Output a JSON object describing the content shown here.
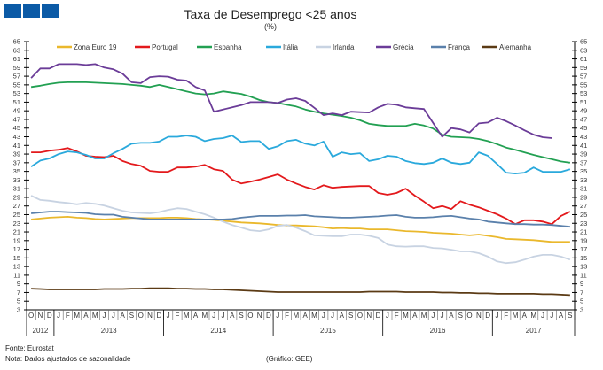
{
  "header": {
    "title": "Taxa de Desemprego <25 anos",
    "unit": "(%)"
  },
  "logo": {
    "color": "#0b5aa6"
  },
  "footer": {
    "source": "Fonte: Eurostat",
    "note": "Nota: Dados ajustados de sazonalidade",
    "credit": "(Gráfico: GEE)"
  },
  "chart_data": {
    "type": "line",
    "title": "Taxa de Desemprego <25 anos",
    "ylabel": "(%)",
    "ylim": [
      3,
      65
    ],
    "yticks": [
      65,
      63,
      61,
      59,
      57,
      55,
      53,
      51,
      49,
      47,
      45,
      43,
      41,
      39,
      37,
      35,
      33,
      31,
      29,
      27,
      25,
      23,
      21,
      19,
      17,
      15,
      13,
      11,
      9,
      7,
      5,
      3
    ],
    "grid": false,
    "legend": "top",
    "x_months": [
      "O",
      "N",
      "D",
      "J",
      "F",
      "M",
      "A",
      "M",
      "J",
      "J",
      "A",
      "S",
      "O",
      "N",
      "D",
      "J",
      "F",
      "M",
      "A",
      "M",
      "J",
      "J",
      "A",
      "S",
      "O",
      "N",
      "D",
      "J",
      "F",
      "M",
      "A",
      "M",
      "J",
      "J",
      "A",
      "S",
      "O",
      "N",
      "D",
      "J",
      "F",
      "M",
      "A",
      "M",
      "J",
      "J",
      "A",
      "S",
      "O",
      "N",
      "D",
      "J",
      "F",
      "M",
      "A",
      "M",
      "J",
      "J",
      "A",
      "S"
    ],
    "x_years": [
      {
        "label": "2012",
        "months": 3
      },
      {
        "label": "2013",
        "months": 12
      },
      {
        "label": "2014",
        "months": 12
      },
      {
        "label": "2015",
        "months": 12
      },
      {
        "label": "2016",
        "months": 12
      },
      {
        "label": "2017",
        "months": 9
      }
    ],
    "series": [
      {
        "name": "Zona Euro 19",
        "color": "#eab82c",
        "values": [
          23.9,
          24.1,
          24.3,
          24.4,
          24.5,
          24.3,
          24.2,
          24,
          23.9,
          24,
          24.1,
          24.2,
          24.2,
          24.2,
          24.2,
          24.3,
          24.3,
          24.2,
          24,
          23.9,
          23.8,
          23.6,
          23.4,
          23.2,
          23.1,
          23,
          22.8,
          22.6,
          22.5,
          22.5,
          22.4,
          22.3,
          22.1,
          21.8,
          21.9,
          21.8,
          21.8,
          21.6,
          21.6,
          21.6,
          21.4,
          21.2,
          21.1,
          21,
          20.8,
          20.7,
          20.6,
          20.4,
          20.2,
          20.4,
          20.1,
          19.8,
          19.4,
          19.3,
          19.2,
          19.1,
          18.9,
          18.7,
          18.7,
          18.7
        ]
      },
      {
        "name": "Portugal",
        "color": "#e3191c",
        "values": [
          39.4,
          39.4,
          39.8,
          40,
          40.4,
          39.6,
          38.6,
          38.4,
          38.3,
          38.6,
          37.4,
          36.7,
          36.3,
          35.1,
          34.9,
          34.9,
          35.9,
          35.9,
          36.1,
          36.5,
          35.5,
          35.1,
          33.1,
          32.2,
          32.6,
          33.1,
          33.7,
          34.3,
          33.1,
          32.2,
          31.4,
          30.8,
          31.8,
          31.2,
          31.4,
          31.5,
          31.6,
          31.6,
          30,
          29.6,
          30,
          31,
          29.4,
          28,
          26.5,
          27,
          26.3,
          28.1,
          27.3,
          26.7,
          25.9,
          25.1,
          24.1,
          22.8,
          23.7,
          23.7,
          23.4,
          22.8,
          24.7,
          25.7
        ]
      },
      {
        "name": "Espanha",
        "color": "#22a052",
        "values": [
          54.5,
          54.8,
          55.2,
          55.5,
          55.6,
          55.6,
          55.6,
          55.5,
          55.4,
          55.3,
          55.2,
          55,
          54.8,
          54.5,
          55,
          54.5,
          54,
          53.5,
          53,
          52.8,
          53,
          53.5,
          53.2,
          52.9,
          52.3,
          51.5,
          51,
          50.8,
          50.4,
          50,
          49.3,
          48.8,
          48.4,
          48.1,
          47.8,
          47.4,
          46.8,
          46,
          45.7,
          45.5,
          45.5,
          45.5,
          46,
          45.6,
          44.9,
          43.5,
          43,
          42.9,
          42.8,
          42.5,
          42,
          41.3,
          40.5,
          40,
          39.4,
          38.8,
          38.3,
          37.8,
          37.3,
          37
        ]
      },
      {
        "name": "Itália",
        "color": "#2aa9dc",
        "values": [
          36.1,
          37.5,
          38,
          39,
          39.6,
          39.4,
          38.8,
          38,
          38,
          39.2,
          40.2,
          41.4,
          41.6,
          41.6,
          41.9,
          43,
          43,
          43.3,
          43,
          42,
          42.5,
          42.7,
          43.3,
          41.8,
          42,
          42,
          40.2,
          40.8,
          42,
          42.3,
          41.4,
          41,
          41.9,
          38.4,
          39.4,
          39,
          39.2,
          37.4,
          37.8,
          38.6,
          38.4,
          37.4,
          36.9,
          36.7,
          37,
          38,
          37,
          36.7,
          37,
          39.4,
          38.6,
          36.7,
          34.7,
          34.5,
          34.7,
          35.9,
          34.9,
          34.9,
          34.9,
          35.5
        ]
      },
      {
        "name": "Irlanda",
        "color": "#c8d3e2",
        "values": [
          29.4,
          28.4,
          28.2,
          27.9,
          27.7,
          27.4,
          27.7,
          27.5,
          27.1,
          26.5,
          25.9,
          25.5,
          25.4,
          25.3,
          25.6,
          26.1,
          26.5,
          26.3,
          25.7,
          25.1,
          24.3,
          23.4,
          22.6,
          22,
          21.4,
          21.2,
          21.6,
          22.4,
          22.6,
          22,
          21.2,
          20.2,
          20.1,
          20,
          20,
          20.4,
          20.4,
          20.1,
          19.6,
          18.1,
          17.7,
          17.6,
          17.7,
          17.7,
          17.3,
          17.2,
          16.9,
          16.5,
          16.5,
          16.1,
          15.3,
          14.2,
          13.8,
          14,
          14.6,
          15.3,
          15.7,
          15.7,
          15.3,
          14.6
        ]
      },
      {
        "name": "Grécia",
        "color": "#6b3c98",
        "values": [
          56.6,
          58.8,
          58.8,
          59.8,
          59.8,
          59.8,
          59.6,
          59.8,
          59,
          58.6,
          57.6,
          55.6,
          55.4,
          56.8,
          57,
          56.9,
          56.2,
          56,
          54.5,
          53.7,
          48.8,
          49.3,
          49.8,
          50.3,
          51,
          51,
          51,
          50.8,
          51.6,
          51.9,
          51.3,
          49.7,
          48,
          48.4,
          48,
          48.8,
          48.7,
          48.6,
          49.8,
          50.6,
          50.4,
          49.8,
          49.6,
          49.4,
          46.2,
          43,
          45,
          44.7,
          44,
          46.1,
          46.3,
          47.4,
          46.6,
          45.6,
          44.5,
          43.5,
          42.9,
          42.7,
          null,
          null
        ]
      },
      {
        "name": "França",
        "color": "#5a80ab",
        "values": [
          25.3,
          25.5,
          25.7,
          25.7,
          25.6,
          25.5,
          25.4,
          25.1,
          25,
          25,
          24.5,
          24.3,
          24.1,
          23.9,
          23.9,
          23.9,
          23.9,
          23.9,
          23.9,
          23.9,
          23.9,
          23.9,
          24,
          24.3,
          24.5,
          24.7,
          24.7,
          24.7,
          24.8,
          24.8,
          24.9,
          24.6,
          24.5,
          24.4,
          24.3,
          24.3,
          24.4,
          24.5,
          24.6,
          24.8,
          24.9,
          24.5,
          24.3,
          24.3,
          24.4,
          24.6,
          24.7,
          24.4,
          24.1,
          23.9,
          23.4,
          23.2,
          23,
          22.8,
          22.8,
          22.7,
          22.7,
          22.6,
          22.4,
          22.2
        ]
      },
      {
        "name": "Alemanha",
        "color": "#5b3a14",
        "values": [
          7.9,
          7.8,
          7.7,
          7.7,
          7.7,
          7.7,
          7.7,
          7.7,
          7.8,
          7.8,
          7.8,
          7.9,
          7.9,
          8,
          8,
          8,
          7.9,
          7.9,
          7.8,
          7.8,
          7.7,
          7.7,
          7.6,
          7.5,
          7.4,
          7.3,
          7.2,
          7.1,
          7.1,
          7.1,
          7.1,
          7.1,
          7.1,
          7.1,
          7.1,
          7.1,
          7.1,
          7.2,
          7.2,
          7.2,
          7.2,
          7.1,
          7.1,
          7.1,
          7.1,
          7.0,
          7.0,
          6.9,
          6.9,
          6.8,
          6.8,
          6.7,
          6.7,
          6.7,
          6.7,
          6.7,
          6.6,
          6.6,
          6.5,
          6.4
        ]
      }
    ]
  }
}
